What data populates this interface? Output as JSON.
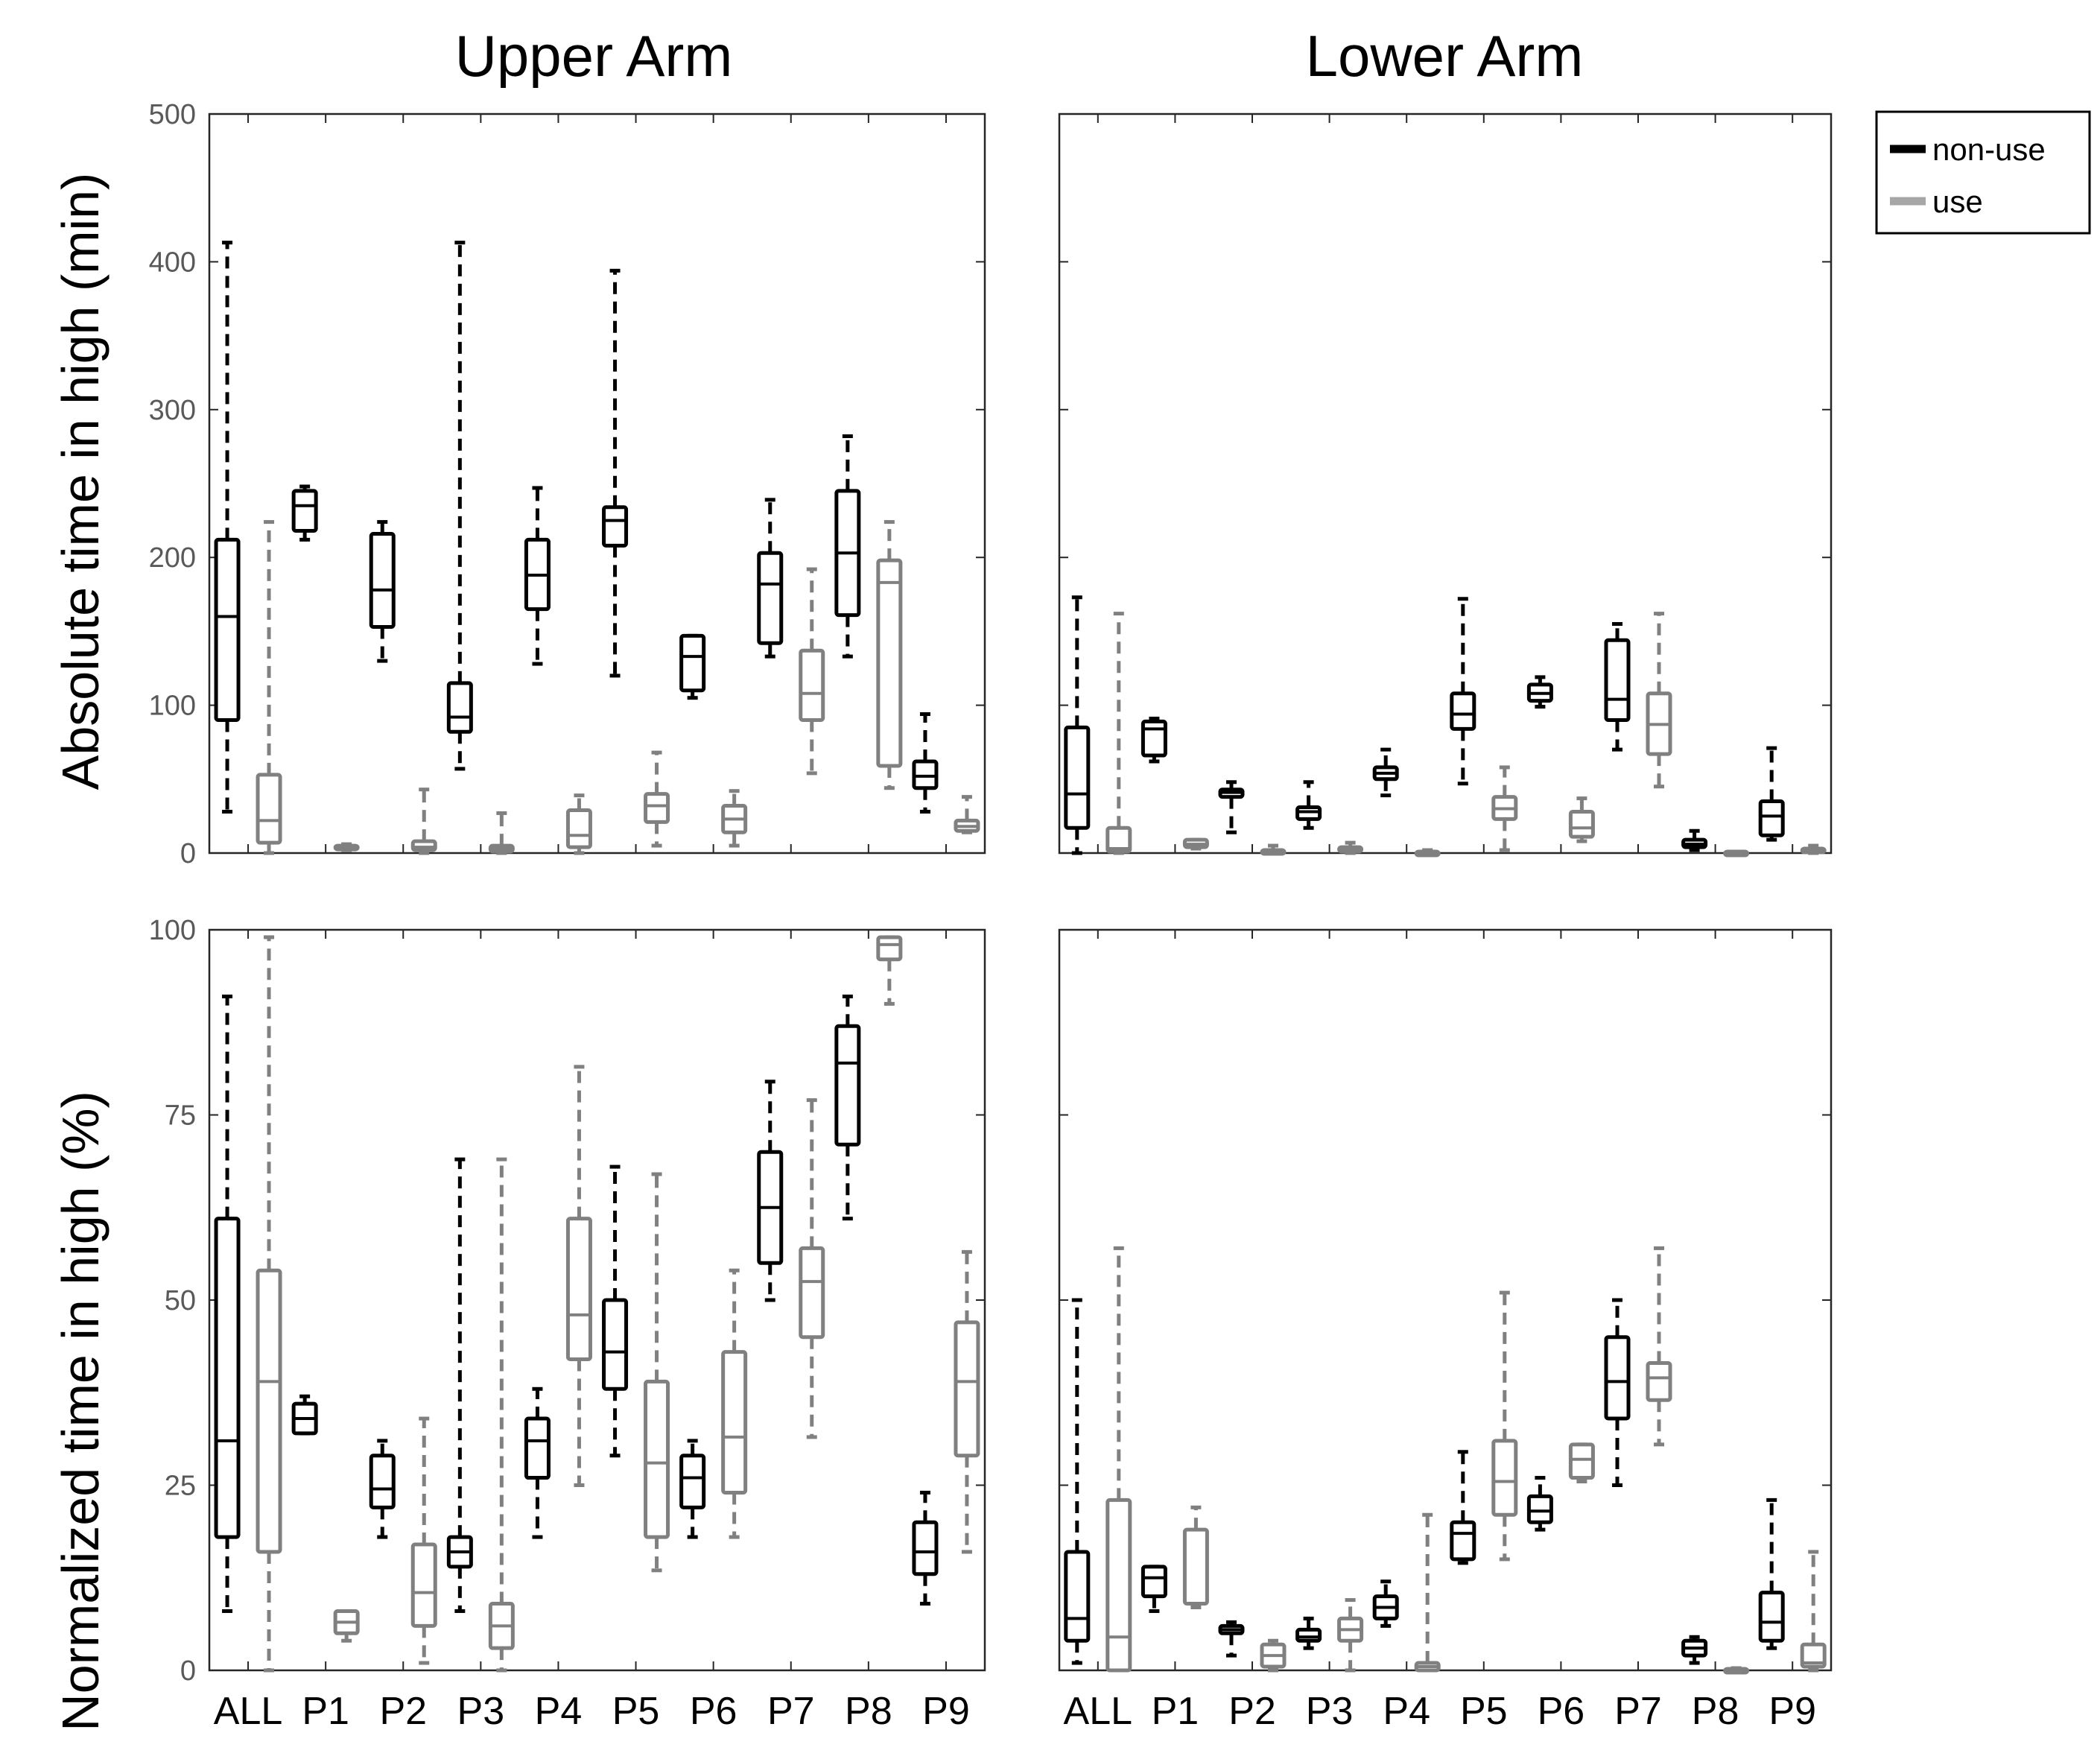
{
  "colors": {
    "non_use": "#000000",
    "use": "#808080",
    "axis": "#262626",
    "tick_text": "#595959"
  },
  "legend": {
    "position": "top-right, outside plots",
    "items": [
      {
        "label": "non-use",
        "color": "#000000"
      },
      {
        "label": "use",
        "color": "#a6a6a6"
      }
    ]
  },
  "chart_data": [
    {
      "type": "box",
      "column_title": "Upper Arm",
      "ylabel": "Absolute time in high (min)",
      "ylim": [
        0,
        500
      ],
      "yticks": [
        0,
        100,
        200,
        300,
        400,
        500
      ],
      "categories": [
        "ALL",
        "P1",
        "P2",
        "P3",
        "P4",
        "P5",
        "P6",
        "P7",
        "P8",
        "P9"
      ],
      "grid": false,
      "series": [
        {
          "name": "non-use",
          "boxes": [
            {
              "min": 28,
              "q1": 90,
              "median": 160,
              "q3": 212,
              "max": 413
            },
            {
              "min": 212,
              "q1": 218,
              "median": 235,
              "q3": 245,
              "max": 248
            },
            {
              "min": 130,
              "q1": 153,
              "median": 178,
              "q3": 216,
              "max": 224
            },
            {
              "min": 57,
              "q1": 82,
              "median": 92,
              "q3": 115,
              "max": 413
            },
            {
              "min": 128,
              "q1": 165,
              "median": 188,
              "q3": 212,
              "max": 247
            },
            {
              "min": 120,
              "q1": 208,
              "median": 225,
              "q3": 234,
              "max": 394
            },
            {
              "min": 105,
              "q1": 110,
              "median": 133,
              "q3": 147,
              "max": 147
            },
            {
              "min": 133,
              "q1": 142,
              "median": 182,
              "q3": 203,
              "max": 239
            },
            {
              "min": 133,
              "q1": 161,
              "median": 203,
              "q3": 245,
              "max": 282
            },
            {
              "min": 28,
              "q1": 44,
              "median": 52,
              "q3": 62,
              "max": 94
            }
          ]
        },
        {
          "name": "use",
          "boxes": [
            {
              "min": 0,
              "q1": 7,
              "median": 22,
              "q3": 53,
              "max": 224
            },
            {
              "min": 2,
              "q1": 3,
              "median": 4,
              "q3": 5,
              "max": 6
            },
            {
              "min": 0,
              "q1": 2,
              "median": 4,
              "q3": 8,
              "max": 43
            },
            {
              "min": 0,
              "q1": 1,
              "median": 3,
              "q3": 5,
              "max": 27
            },
            {
              "min": 0,
              "q1": 4,
              "median": 12,
              "q3": 29,
              "max": 39
            },
            {
              "min": 5,
              "q1": 21,
              "median": 32,
              "q3": 40,
              "max": 68
            },
            {
              "min": 5,
              "q1": 14,
              "median": 23,
              "q3": 32,
              "max": 42
            },
            {
              "min": 54,
              "q1": 90,
              "median": 108,
              "q3": 137,
              "max": 192
            },
            {
              "min": 44,
              "q1": 59,
              "median": 183,
              "q3": 198,
              "max": 224
            },
            {
              "min": 14,
              "q1": 15,
              "median": 18,
              "q3": 22,
              "max": 38
            }
          ]
        }
      ]
    },
    {
      "type": "box",
      "column_title": "Lower Arm",
      "ylabel": "",
      "ylim": [
        0,
        500
      ],
      "yticks": [
        0,
        100,
        200,
        300,
        400,
        500
      ],
      "categories": [
        "ALL",
        "P1",
        "P2",
        "P3",
        "P4",
        "P5",
        "P6",
        "P7",
        "P8",
        "P9"
      ],
      "grid": false,
      "series": [
        {
          "name": "non-use",
          "boxes": [
            {
              "min": 0,
              "q1": 17,
              "median": 40,
              "q3": 85,
              "max": 173
            },
            {
              "min": 62,
              "q1": 66,
              "median": 84,
              "q3": 89,
              "max": 91
            },
            {
              "min": 14,
              "q1": 38,
              "median": 41,
              "q3": 43,
              "max": 48
            },
            {
              "min": 17,
              "q1": 23,
              "median": 28,
              "q3": 31,
              "max": 48
            },
            {
              "min": 39,
              "q1": 50,
              "median": 54,
              "q3": 58,
              "max": 70
            },
            {
              "min": 47,
              "q1": 84,
              "median": 94,
              "q3": 108,
              "max": 172
            },
            {
              "min": 99,
              "q1": 103,
              "median": 108,
              "q3": 114,
              "max": 119
            },
            {
              "min": 70,
              "q1": 90,
              "median": 104,
              "q3": 144,
              "max": 155
            },
            {
              "min": 2,
              "q1": 4,
              "median": 6,
              "q3": 9,
              "max": 15
            },
            {
              "min": 9,
              "q1": 12,
              "median": 25,
              "q3": 35,
              "max": 71
            }
          ]
        },
        {
          "name": "use",
          "boxes": [
            {
              "min": 0,
              "q1": 1,
              "median": 3,
              "q3": 17,
              "max": 162
            },
            {
              "min": 3,
              "q1": 4,
              "median": 6,
              "q3": 9,
              "max": 9
            },
            {
              "min": 0,
              "q1": 0,
              "median": 1,
              "q3": 2,
              "max": 5
            },
            {
              "min": 0,
              "q1": 1,
              "median": 2,
              "q3": 4,
              "max": 7
            },
            {
              "min": 0,
              "q1": 0,
              "median": 0,
              "q3": 1,
              "max": 2
            },
            {
              "min": 2,
              "q1": 23,
              "median": 30,
              "q3": 38,
              "max": 58
            },
            {
              "min": 8,
              "q1": 11,
              "median": 17,
              "q3": 28,
              "max": 37
            },
            {
              "min": 45,
              "q1": 67,
              "median": 87,
              "q3": 108,
              "max": 162
            },
            {
              "min": 0,
              "q1": 0,
              "median": 0,
              "q3": 1,
              "max": 1
            },
            {
              "min": 0,
              "q1": 1,
              "median": 2,
              "q3": 3,
              "max": 5
            }
          ]
        }
      ]
    },
    {
      "type": "box",
      "column_title": "",
      "ylabel": "Normalized time in high (%)",
      "ylim": [
        0,
        100
      ],
      "yticks": [
        0,
        25,
        50,
        75,
        100
      ],
      "categories": [
        "ALL",
        "P1",
        "P2",
        "P3",
        "P4",
        "P5",
        "P6",
        "P7",
        "P8",
        "P9"
      ],
      "grid": false,
      "series": [
        {
          "name": "non-use",
          "boxes": [
            {
              "min": 8,
              "q1": 18,
              "median": 31,
              "q3": 61,
              "max": 91
            },
            {
              "min": 32,
              "q1": 32,
              "median": 34,
              "q3": 36,
              "max": 37
            },
            {
              "min": 18,
              "q1": 22,
              "median": 24.5,
              "q3": 29,
              "max": 31
            },
            {
              "min": 8,
              "q1": 14,
              "median": 16,
              "q3": 18,
              "max": 69
            },
            {
              "min": 18,
              "q1": 26,
              "median": 31,
              "q3": 34,
              "max": 38
            },
            {
              "min": 29,
              "q1": 38,
              "median": 43,
              "q3": 50,
              "max": 68
            },
            {
              "min": 18,
              "q1": 22,
              "median": 26,
              "q3": 29,
              "max": 31
            },
            {
              "min": 50,
              "q1": 55,
              "median": 62.5,
              "q3": 70,
              "max": 79.5
            },
            {
              "min": 61,
              "q1": 71,
              "median": 82,
              "q3": 87,
              "max": 91
            },
            {
              "min": 9,
              "q1": 13,
              "median": 16,
              "q3": 20,
              "max": 24
            }
          ]
        },
        {
          "name": "use",
          "boxes": [
            {
              "min": 0,
              "q1": 16,
              "median": 39,
              "q3": 54,
              "max": 99
            },
            {
              "min": 4,
              "q1": 5,
              "median": 6.5,
              "q3": 8,
              "max": 8
            },
            {
              "min": 1,
              "q1": 6,
              "median": 10.5,
              "q3": 17,
              "max": 34
            },
            {
              "min": 0,
              "q1": 3,
              "median": 6,
              "q3": 9,
              "max": 69
            },
            {
              "min": 25,
              "q1": 42,
              "median": 48,
              "q3": 61,
              "max": 81.5
            },
            {
              "min": 13.5,
              "q1": 18,
              "median": 28,
              "q3": 39,
              "max": 67
            },
            {
              "min": 18,
              "q1": 24,
              "median": 31.5,
              "q3": 43,
              "max": 54
            },
            {
              "min": 31.5,
              "q1": 45,
              "median": 52.5,
              "q3": 57,
              "max": 77
            },
            {
              "min": 90,
              "q1": 96,
              "median": 98,
              "q3": 99,
              "max": 99
            },
            {
              "min": 16,
              "q1": 29,
              "median": 39,
              "q3": 47,
              "max": 56.5
            }
          ]
        }
      ]
    },
    {
      "type": "box",
      "column_title": "",
      "ylabel": "",
      "ylim": [
        0,
        100
      ],
      "yticks": [
        0,
        25,
        50,
        75,
        100
      ],
      "categories": [
        "ALL",
        "P1",
        "P2",
        "P3",
        "P4",
        "P5",
        "P6",
        "P7",
        "P8",
        "P9"
      ],
      "grid": false,
      "series": [
        {
          "name": "non-use",
          "boxes": [
            {
              "min": 1,
              "q1": 4,
              "median": 7,
              "q3": 16,
              "max": 50
            },
            {
              "min": 8,
              "q1": 10,
              "median": 12.5,
              "q3": 14,
              "max": 14
            },
            {
              "min": 2,
              "q1": 5,
              "median": 5.5,
              "q3": 6,
              "max": 6.5
            },
            {
              "min": 3,
              "q1": 4,
              "median": 4.5,
              "q3": 5.5,
              "max": 7
            },
            {
              "min": 6,
              "q1": 7,
              "median": 8.5,
              "q3": 10,
              "max": 12
            },
            {
              "min": 14.5,
              "q1": 15,
              "median": 18.5,
              "q3": 20,
              "max": 29.5
            },
            {
              "min": 19,
              "q1": 20,
              "median": 21.5,
              "q3": 23.5,
              "max": 26
            },
            {
              "min": 25,
              "q1": 34,
              "median": 39,
              "q3": 45,
              "max": 50
            },
            {
              "min": 1,
              "q1": 2,
              "median": 3,
              "q3": 4,
              "max": 4.5
            },
            {
              "min": 3,
              "q1": 4,
              "median": 6.5,
              "q3": 10.5,
              "max": 23
            }
          ]
        },
        {
          "name": "use",
          "boxes": [
            {
              "min": 0,
              "q1": 0,
              "median": 4.5,
              "q3": 23,
              "max": 57
            },
            {
              "min": 8.5,
              "q1": 9,
              "median": 9,
              "q3": 19,
              "max": 22
            },
            {
              "min": 0,
              "q1": 0.5,
              "median": 2,
              "q3": 3.5,
              "max": 4
            },
            {
              "min": 0,
              "q1": 4,
              "median": 5.5,
              "q3": 7,
              "max": 9.5
            },
            {
              "min": 0,
              "q1": 0,
              "median": 0.5,
              "q3": 1,
              "max": 21
            },
            {
              "min": 15,
              "q1": 21,
              "median": 25.5,
              "q3": 31,
              "max": 51
            },
            {
              "min": 25.5,
              "q1": 26,
              "median": 28.5,
              "q3": 30.5,
              "max": 30.5
            },
            {
              "min": 30.5,
              "q1": 36.5,
              "median": 39.5,
              "q3": 41.5,
              "max": 57
            },
            {
              "min": 0,
              "q1": 0,
              "median": 0,
              "q3": 0.2,
              "max": 0.3
            },
            {
              "min": 0,
              "q1": 0.5,
              "median": 1,
              "q3": 3.5,
              "max": 16
            }
          ]
        }
      ]
    }
  ]
}
